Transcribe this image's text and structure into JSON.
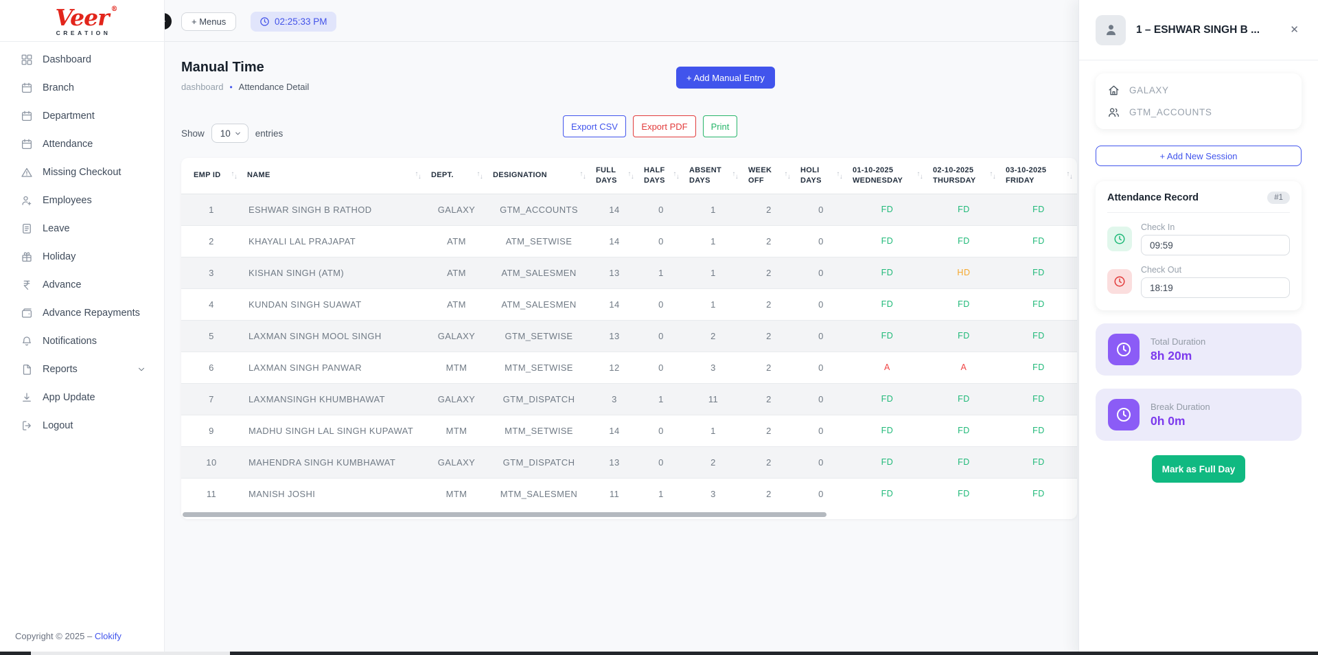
{
  "brand": {
    "name": "Veer",
    "reg": "®",
    "tagline": "CREATION"
  },
  "topbar": {
    "menus_label": "+ Menus",
    "time": "02:25:33 PM"
  },
  "sidebar": {
    "items": [
      {
        "label": "Dashboard",
        "icon": "grid-icon"
      },
      {
        "label": "Branch",
        "icon": "calendar-icon"
      },
      {
        "label": "Department",
        "icon": "calendar-icon"
      },
      {
        "label": "Attendance",
        "icon": "calendar-icon"
      },
      {
        "label": "Missing Checkout",
        "icon": "warning-icon"
      },
      {
        "label": "Employees",
        "icon": "user-plus-icon"
      },
      {
        "label": "Leave",
        "icon": "document-icon"
      },
      {
        "label": "Holiday",
        "icon": "gift-icon"
      },
      {
        "label": "Advance",
        "icon": "rupee-icon"
      },
      {
        "label": "Advance Repayments",
        "icon": "wallet-icon"
      },
      {
        "label": "Notifications",
        "icon": "bell-icon"
      },
      {
        "label": "Reports",
        "icon": "report-icon",
        "has_chevron": true
      },
      {
        "label": "App Update",
        "icon": "download-icon"
      },
      {
        "label": "Logout",
        "icon": "logout-icon"
      }
    ]
  },
  "page": {
    "title": "Manual Time",
    "breadcrumb_1": "dashboard",
    "breadcrumb_sep": "•",
    "breadcrumb_2": "Attendance Detail",
    "add_entry_label": "+ Add Manual Entry"
  },
  "controls": {
    "show_label": "Show",
    "page_size": "10",
    "entries_label": "entries",
    "export_csv": "Export CSV",
    "export_pdf": "Export PDF",
    "print": "Print"
  },
  "table": {
    "columns": [
      {
        "label": "EMP ID"
      },
      {
        "label": "NAME"
      },
      {
        "label": "DEPT."
      },
      {
        "label": "DESIGNATION"
      },
      {
        "label": "FULL DAYS"
      },
      {
        "label": "HALF DAYS"
      },
      {
        "label": "ABSENT DAYS"
      },
      {
        "label": "WEEK OFF"
      },
      {
        "label": "HOLI DAYS"
      },
      {
        "label": "01-10-2025 WEDNESDAY"
      },
      {
        "label": "02-10-2025 THURSDAY"
      },
      {
        "label": "03-10-2025 FRIDAY"
      }
    ],
    "status_colors": {
      "FD": "#1fb978",
      "HD": "#f5a82d",
      "A": "#f04444"
    },
    "rows": [
      {
        "emp_id": "1",
        "name": "ESHWAR SINGH B RATHOD",
        "dept": "GALAXY",
        "designation": "GTM_ACCOUNTS",
        "full_days": "14",
        "half_days": "0",
        "absent_days": "1",
        "week_off": "2",
        "holi_days": "0",
        "day1": "FD",
        "day2": "FD",
        "day3": "FD"
      },
      {
        "emp_id": "2",
        "name": "KHAYALI LAL PRAJAPAT",
        "dept": "ATM",
        "designation": "ATM_SETWISE",
        "full_days": "14",
        "half_days": "0",
        "absent_days": "1",
        "week_off": "2",
        "holi_days": "0",
        "day1": "FD",
        "day2": "FD",
        "day3": "FD"
      },
      {
        "emp_id": "3",
        "name": "KISHAN SINGH (ATM)",
        "dept": "ATM",
        "designation": "ATM_SALESMEN",
        "full_days": "13",
        "half_days": "1",
        "absent_days": "1",
        "week_off": "2",
        "holi_days": "0",
        "day1": "FD",
        "day2": "HD",
        "day3": "FD"
      },
      {
        "emp_id": "4",
        "name": "KUNDAN SINGH SUAWAT",
        "dept": "ATM",
        "designation": "ATM_SALESMEN",
        "full_days": "14",
        "half_days": "0",
        "absent_days": "1",
        "week_off": "2",
        "holi_days": "0",
        "day1": "FD",
        "day2": "FD",
        "day3": "FD"
      },
      {
        "emp_id": "5",
        "name": "LAXMAN SINGH MOOL SINGH",
        "dept": "GALAXY",
        "designation": "GTM_SETWISE",
        "full_days": "13",
        "half_days": "0",
        "absent_days": "2",
        "week_off": "2",
        "holi_days": "0",
        "day1": "FD",
        "day2": "FD",
        "day3": "FD"
      },
      {
        "emp_id": "6",
        "name": "LAXMAN SINGH PANWAR",
        "dept": "MTM",
        "designation": "MTM_SETWISE",
        "full_days": "12",
        "half_days": "0",
        "absent_days": "3",
        "week_off": "2",
        "holi_days": "0",
        "day1": "A",
        "day2": "A",
        "day3": "FD"
      },
      {
        "emp_id": "7",
        "name": "LAXMANSINGH KHUMBHAWAT",
        "dept": "GALAXY",
        "designation": "GTM_DISPATCH",
        "full_days": "3",
        "half_days": "1",
        "absent_days": "11",
        "week_off": "2",
        "holi_days": "0",
        "day1": "FD",
        "day2": "FD",
        "day3": "FD"
      },
      {
        "emp_id": "9",
        "name": "MADHU SINGH LAL SINGH KUPAWAT",
        "dept": "MTM",
        "designation": "MTM_SETWISE",
        "full_days": "14",
        "half_days": "0",
        "absent_days": "1",
        "week_off": "2",
        "holi_days": "0",
        "day1": "FD",
        "day2": "FD",
        "day3": "FD"
      },
      {
        "emp_id": "10",
        "name": "MAHENDRA SINGH KUMBHAWAT",
        "dept": "GALAXY",
        "designation": "GTM_DISPATCH",
        "full_days": "13",
        "half_days": "0",
        "absent_days": "2",
        "week_off": "2",
        "holi_days": "0",
        "day1": "FD",
        "day2": "FD",
        "day3": "FD"
      },
      {
        "emp_id": "11",
        "name": "MANISH JOSHI",
        "dept": "MTM",
        "designation": "MTM_SALESMEN",
        "full_days": "11",
        "half_days": "1",
        "absent_days": "3",
        "week_off": "2",
        "holi_days": "0",
        "day1": "FD",
        "day2": "FD",
        "day3": "FD"
      }
    ]
  },
  "panel": {
    "title": "1 – ESHWAR SINGH B ...",
    "close": "✕",
    "branch": "GALAXY",
    "designation": "GTM_ACCOUNTS",
    "add_session_label": "+ Add New Session",
    "record_title": "Attendance Record",
    "record_badge": "#1",
    "check_in_label": "Check In",
    "check_in_value": "09:59",
    "check_out_label": "Check Out",
    "check_out_value": "18:19",
    "total_duration_label": "Total Duration",
    "total_duration_value": "8h 20m",
    "break_duration_label": "Break Duration",
    "break_duration_value": "0h 0m",
    "mark_full_day_label": "Mark as Full Day"
  },
  "footer": {
    "copyright": "Copyright © 2025 –",
    "link_label": "Clokify"
  },
  "accent_colors": {
    "primary": "#4154ec",
    "success": "#1fb978",
    "danger": "#e23b3b",
    "purple": "#8b5cf6"
  }
}
